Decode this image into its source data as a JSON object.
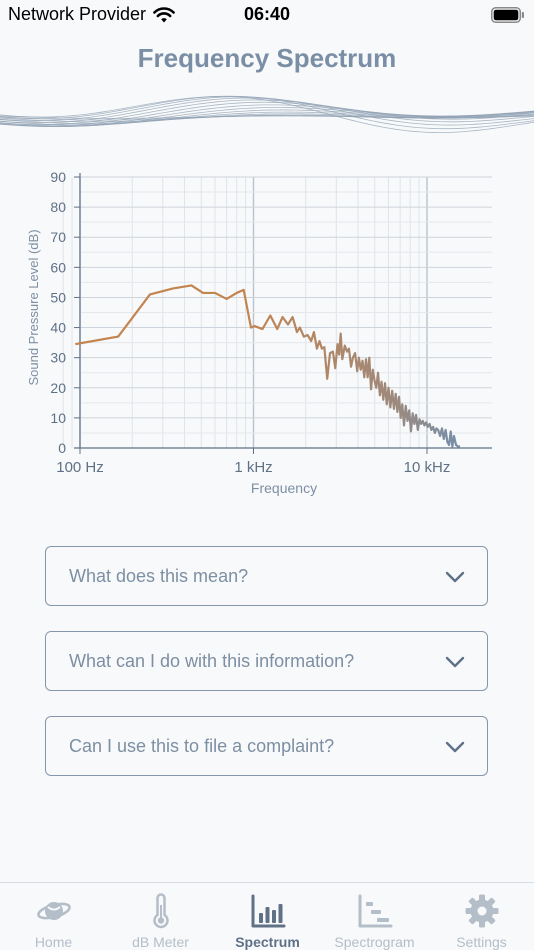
{
  "status_bar": {
    "carrier": "Network Provider",
    "time": "06:40",
    "wifi_icon": "wifi-icon",
    "battery_icon": "battery-full-icon"
  },
  "header": {
    "title": "Frequency Spectrum"
  },
  "chart_data": {
    "type": "line",
    "xlabel": "Frequency",
    "ylabel": "Sound Pressure Level (dB)",
    "xscale": "log",
    "xlim": [
      80,
      16000
    ],
    "ylim": [
      0,
      90
    ],
    "x_ticks": [
      100,
      1000,
      10000
    ],
    "x_tick_labels": [
      "100 Hz",
      "1 kHz",
      "10 kHz"
    ],
    "y_ticks": [
      0,
      10,
      20,
      30,
      40,
      50,
      60,
      70,
      80,
      90
    ],
    "y_tick_labels": [
      "0",
      "10",
      "20",
      "30",
      "40",
      "50",
      "60",
      "70",
      "80",
      "90"
    ],
    "grid": true,
    "legend": "none",
    "colors": {
      "low": "#c38450",
      "high": "#7a8ea5"
    },
    "series": [
      {
        "x": [
          94,
          166,
          253,
          344,
          439,
          512,
          600,
          700,
          800,
          878,
          967,
          1015,
          1126,
          1250,
          1370,
          1470,
          1580,
          1680,
          1780,
          1850,
          1950,
          2050,
          2150,
          2230,
          2320,
          2400,
          2480,
          2560,
          2660,
          2760,
          2870,
          2960,
          3050,
          3120,
          3180,
          3250,
          3360,
          3460,
          3550,
          3650,
          3740,
          3850,
          3960,
          4050,
          4150,
          4250,
          4350,
          4450,
          4550,
          4650,
          4760,
          4870,
          4980,
          5100,
          5220,
          5350,
          5470,
          5600,
          5730,
          5860,
          6000,
          6150,
          6300,
          6450,
          6600,
          6750,
          6900,
          7050,
          7200,
          7370,
          7540,
          7720,
          7900,
          8080,
          8270,
          8460,
          8650,
          8850,
          9050,
          9250,
          9450,
          9660,
          9880,
          10100,
          10350,
          10600,
          10850,
          11100,
          11350,
          11600,
          11900,
          12200,
          12500,
          12800,
          13100,
          13400,
          13700,
          14000,
          14300,
          14700,
          15100,
          15500
        ],
        "y": [
          34.5,
          37,
          51,
          53,
          54,
          51.5,
          51.5,
          49.5,
          51.5,
          52.5,
          40,
          40.5,
          39.5,
          44,
          39.5,
          43.5,
          41,
          43.5,
          38.5,
          40,
          37,
          37.5,
          35.5,
          38.5,
          33,
          35.5,
          33,
          33.5,
          23,
          31.5,
          32,
          26.5,
          34.5,
          31,
          38,
          29.5,
          34,
          32,
          33,
          27,
          30,
          31.5,
          25.5,
          30,
          26,
          29,
          23.5,
          29.5,
          23.5,
          30,
          19.5,
          26,
          22.5,
          20,
          25,
          17.5,
          22,
          16,
          21.5,
          14.5,
          20,
          13.5,
          19,
          13,
          18,
          12,
          17,
          10,
          14.5,
          7.5,
          14,
          9,
          12.5,
          5.5,
          11.5,
          8,
          11,
          6,
          9.5,
          8,
          9,
          7.5,
          8.5,
          7,
          8,
          6,
          7,
          5,
          6.5,
          6,
          4,
          6.5,
          3,
          6,
          2,
          1,
          5.5,
          0.5,
          4,
          1,
          0.5,
          0.5
        ]
      }
    ]
  },
  "faq": [
    {
      "question": "What does this mean?",
      "icon": "chevron-down-icon"
    },
    {
      "question": "What can I do with this information?",
      "icon": "chevron-down-icon"
    },
    {
      "question": "Can I use this to file a complaint?",
      "icon": "chevron-down-icon"
    }
  ],
  "tab_bar": {
    "active_tab": "Spectrum",
    "tabs": [
      {
        "label": "Home",
        "icon": "planet-logo-icon"
      },
      {
        "label": "dB Meter",
        "icon": "thermometer-icon"
      },
      {
        "label": "Spectrum",
        "icon": "bar-chart-icon"
      },
      {
        "label": "Spectrogram",
        "icon": "spectrogram-icon"
      },
      {
        "label": "Settings",
        "icon": "gear-icon"
      }
    ]
  }
}
